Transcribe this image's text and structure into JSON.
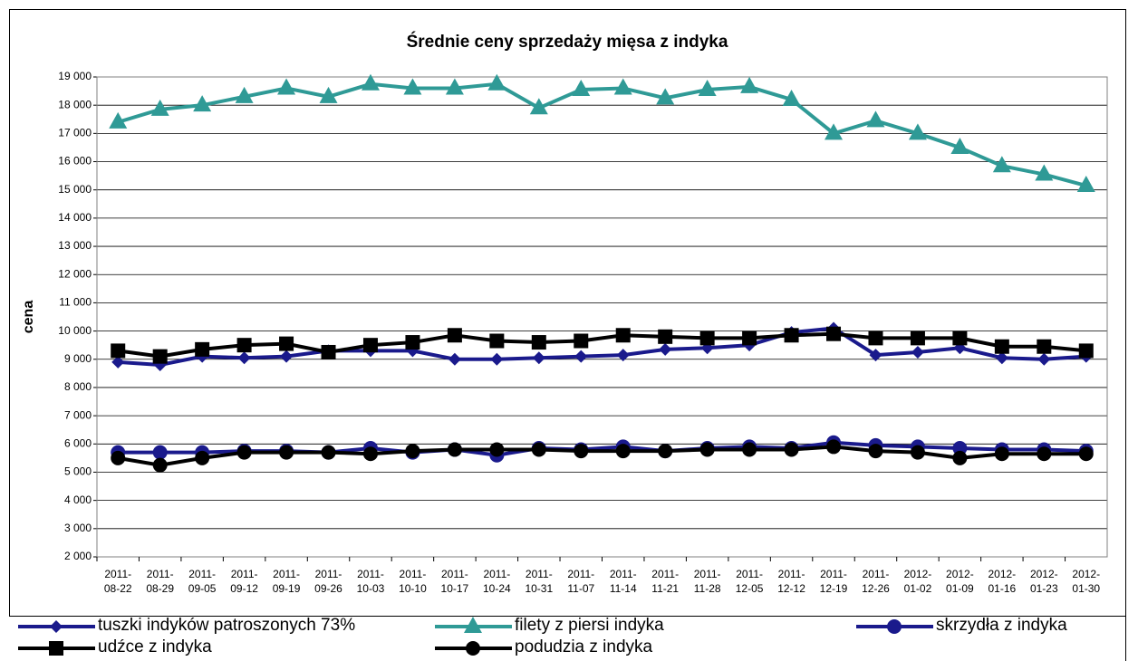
{
  "chart_data": {
    "type": "line",
    "title": "Średnie ceny sprzedaży mięsa z indyka",
    "y_label": "cena",
    "categories": [
      "2011- 08-22",
      "2011- 08-29",
      "2011- 09-05",
      "2011- 09-12",
      "2011- 09-19",
      "2011- 09-26",
      "2011- 10-03",
      "2011- 10-10",
      "2011- 10-17",
      "2011- 10-24",
      "2011- 10-31",
      "2011- 11-07",
      "2011- 11-14",
      "2011- 11-21",
      "2011- 11-28",
      "2011- 12-05",
      "2011- 12-12",
      "2011- 12-19",
      "2011- 12-26",
      "2012- 01-02",
      "2012- 01-09",
      "2012- 01-16",
      "2012- 01-23",
      "2012- 01-30"
    ],
    "series": [
      {
        "name": "tuszki indyków patroszonych 73%",
        "color": "#1a1a8c",
        "marker": "diamond",
        "values": [
          8900,
          8800,
          9100,
          9050,
          9100,
          9300,
          9300,
          9300,
          9000,
          9000,
          9050,
          9100,
          9150,
          9350,
          9400,
          9500,
          9950,
          10100,
          9150,
          9250,
          9400,
          9050,
          9000,
          9100
        ]
      },
      {
        "name": "filety z piersi indyka",
        "color": "#2f9a96",
        "marker": "triangle",
        "values": [
          17400,
          17850,
          18000,
          18300,
          18600,
          18300,
          18750,
          18600,
          18600,
          18750,
          17900,
          18550,
          18600,
          18250,
          18550,
          18650,
          18200,
          17000,
          17450,
          17000,
          16500,
          15850,
          15550,
          15150
        ]
      },
      {
        "name": "skrzydła z indyka",
        "color": "#1a1a8c",
        "marker": "circle",
        "values": [
          5700,
          5700,
          5700,
          5750,
          5750,
          5700,
          5850,
          5700,
          5800,
          5600,
          5850,
          5800,
          5900,
          5750,
          5850,
          5900,
          5850,
          6050,
          5950,
          5900,
          5850,
          5800,
          5800,
          5750
        ]
      },
      {
        "name": "udźce z indyka",
        "color": "#000000",
        "marker": "square",
        "values": [
          9300,
          9100,
          9350,
          9500,
          9550,
          9250,
          9500,
          9600,
          9850,
          9650,
          9600,
          9650,
          9850,
          9800,
          9750,
          9750,
          9850,
          9900,
          9750,
          9750,
          9750,
          9450,
          9450,
          9300
        ]
      },
      {
        "name": "podudzia z indyka",
        "color": "#000000",
        "marker": "circle",
        "values": [
          5500,
          5250,
          5500,
          5700,
          5700,
          5700,
          5650,
          5750,
          5800,
          5800,
          5800,
          5750,
          5750,
          5750,
          5800,
          5800,
          5800,
          5900,
          5750,
          5700,
          5500,
          5650,
          5650,
          5650
        ]
      }
    ],
    "ylim": [
      2000,
      19000
    ],
    "yticks": [
      {
        "value": 2000,
        "label": "2 000"
      },
      {
        "value": 3000,
        "label": "3 000"
      },
      {
        "value": 4000,
        "label": "4 000"
      },
      {
        "value": 5000,
        "label": "5 000"
      },
      {
        "value": 6000,
        "label": "6 000"
      },
      {
        "value": 7000,
        "label": "7 000"
      },
      {
        "value": 8000,
        "label": "8 000"
      },
      {
        "value": 9000,
        "label": "9 000"
      },
      {
        "value": 10000,
        "label": "10 000"
      },
      {
        "value": 11000,
        "label": "11 000"
      },
      {
        "value": 12000,
        "label": "12 000"
      },
      {
        "value": 13000,
        "label": "13 000"
      },
      {
        "value": 14000,
        "label": "14 000"
      },
      {
        "value": 15000,
        "label": "15 000"
      },
      {
        "value": 16000,
        "label": "16 000"
      },
      {
        "value": 17000,
        "label": "17 000"
      },
      {
        "value": 18000,
        "label": "18 000"
      },
      {
        "value": 19000,
        "label": "19 000"
      }
    ],
    "grid": true
  }
}
